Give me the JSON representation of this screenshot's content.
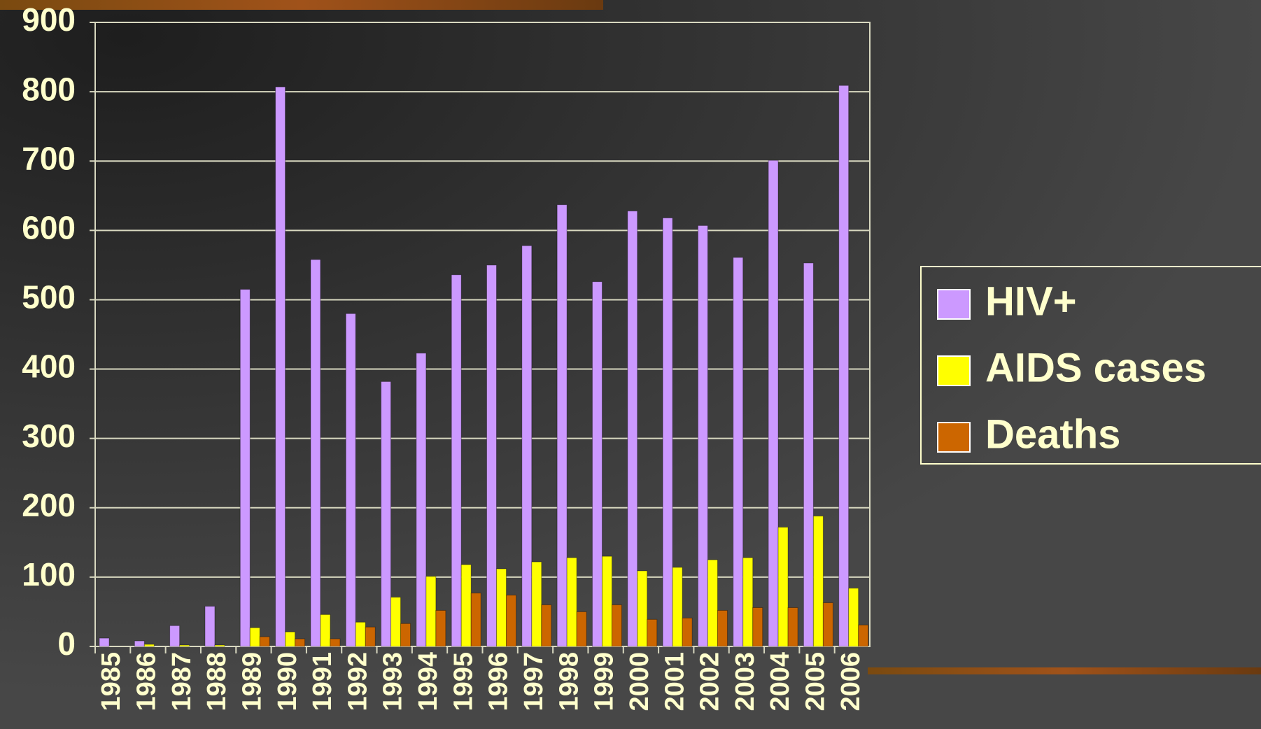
{
  "chart_data": {
    "type": "bar",
    "categories": [
      "1985",
      "1986",
      "1987",
      "1988",
      "1989",
      "1990",
      "1991",
      "1992",
      "1993",
      "1994",
      "1995",
      "1996",
      "1997",
      "1998",
      "1999",
      "2000",
      "2001",
      "2002",
      "2003",
      "2004",
      "2005",
      "2006"
    ],
    "series": [
      {
        "name": "HIV+",
        "color": "#cc99ff",
        "values": [
          12,
          8,
          30,
          58,
          515,
          807,
          558,
          480,
          382,
          423,
          536,
          550,
          578,
          637,
          526,
          628,
          618,
          607,
          561,
          701,
          553,
          809
        ]
      },
      {
        "name": "AIDS cases",
        "color": "#ffff00",
        "values": [
          0,
          3,
          2,
          2,
          27,
          21,
          46,
          35,
          71,
          101,
          118,
          112,
          122,
          128,
          130,
          109,
          114,
          125,
          128,
          172,
          188,
          84
        ]
      },
      {
        "name": "Deaths",
        "color": "#cc6600",
        "values": [
          0,
          0,
          0,
          0,
          14,
          11,
          11,
          28,
          33,
          52,
          77,
          74,
          60,
          50,
          60,
          39,
          41,
          52,
          56,
          56,
          63,
          31
        ]
      }
    ],
    "ylim": [
      0,
      900
    ],
    "yticks": [
      0,
      100,
      200,
      300,
      400,
      500,
      600,
      700,
      800,
      900
    ],
    "grid": true,
    "legend": "right"
  }
}
